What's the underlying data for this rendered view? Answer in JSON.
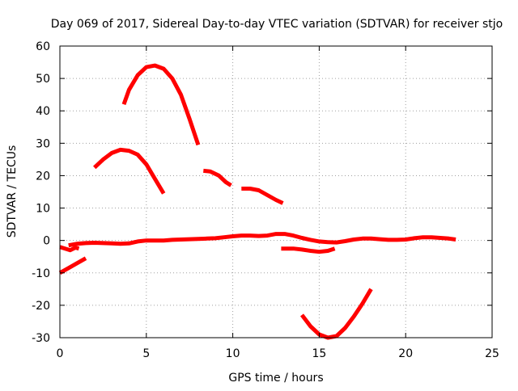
{
  "chart_data": {
    "type": "scatter",
    "title": "Day 069 of 2017, Sidereal Day-to-day VTEC variation (SDTVAR) for receiver stjo",
    "xlabel": "GPS time / hours",
    "ylabel": "SDTVAR / TECUs",
    "xlim": [
      0,
      25
    ],
    "ylim": [
      -30,
      60
    ],
    "xticks": [
      0,
      5,
      10,
      15,
      20,
      25
    ],
    "yticks": [
      -30,
      -20,
      -10,
      0,
      10,
      20,
      30,
      40,
      50,
      60
    ],
    "grid": true,
    "series": [
      {
        "name": "SDTVAR",
        "color": "#ff0000",
        "segments": [
          [
            [
              0.0,
              -2.0
            ],
            [
              0.3,
              -2.5
            ],
            [
              0.6,
              -3.0
            ],
            [
              0.9,
              -2.2
            ],
            [
              1.1,
              -2.5
            ]
          ],
          [
            [
              0.0,
              -10.0
            ],
            [
              0.5,
              -8.5
            ],
            [
              1.0,
              -7.0
            ],
            [
              1.5,
              -5.5
            ]
          ],
          [
            [
              0.5,
              -1.5
            ],
            [
              1.0,
              -1.0
            ],
            [
              1.5,
              -0.8
            ],
            [
              2.0,
              -0.7
            ],
            [
              2.5,
              -0.8
            ],
            [
              3.0,
              -0.9
            ],
            [
              3.5,
              -1.0
            ],
            [
              4.0,
              -0.9
            ],
            [
              4.5,
              -0.3
            ],
            [
              5.0,
              0.0
            ],
            [
              5.5,
              0.0
            ],
            [
              6.0,
              0.0
            ],
            [
              6.5,
              0.2
            ],
            [
              7.0,
              0.3
            ],
            [
              7.5,
              0.4
            ],
            [
              8.0,
              0.5
            ],
            [
              8.5,
              0.6
            ],
            [
              9.0,
              0.7
            ],
            [
              9.5,
              1.0
            ],
            [
              10.0,
              1.3
            ],
            [
              10.5,
              1.5
            ],
            [
              11.0,
              1.5
            ],
            [
              11.5,
              1.4
            ],
            [
              12.0,
              1.5
            ],
            [
              12.5,
              2.0
            ],
            [
              13.0,
              2.0
            ],
            [
              13.5,
              1.5
            ],
            [
              14.0,
              0.8
            ],
            [
              14.5,
              0.2
            ],
            [
              15.0,
              -0.3
            ],
            [
              15.5,
              -0.5
            ],
            [
              16.0,
              -0.6
            ],
            [
              16.5,
              -0.2
            ],
            [
              17.0,
              0.3
            ],
            [
              17.5,
              0.6
            ],
            [
              18.0,
              0.6
            ],
            [
              18.5,
              0.4
            ],
            [
              19.0,
              0.2
            ],
            [
              19.5,
              0.2
            ],
            [
              20.0,
              0.3
            ],
            [
              20.5,
              0.7
            ],
            [
              21.0,
              1.0
            ],
            [
              21.5,
              1.0
            ],
            [
              22.0,
              0.8
            ],
            [
              22.5,
              0.6
            ],
            [
              22.9,
              0.3
            ]
          ],
          [
            [
              3.7,
              42.0
            ],
            [
              4.0,
              46.5
            ],
            [
              4.5,
              51.0
            ],
            [
              5.0,
              53.5
            ],
            [
              5.5,
              54.0
            ],
            [
              6.0,
              53.0
            ],
            [
              6.5,
              50.0
            ],
            [
              7.0,
              45.0
            ],
            [
              7.5,
              37.5
            ],
            [
              8.0,
              29.5
            ]
          ],
          [
            [
              2.0,
              22.5
            ],
            [
              2.5,
              25.0
            ],
            [
              3.0,
              27.0
            ],
            [
              3.5,
              28.0
            ],
            [
              4.0,
              27.7
            ],
            [
              4.5,
              26.5
            ],
            [
              5.0,
              23.5
            ],
            [
              5.5,
              19.0
            ],
            [
              6.0,
              14.5
            ]
          ],
          [
            [
              8.3,
              21.5
            ],
            [
              8.7,
              21.3
            ],
            [
              9.2,
              20.0
            ],
            [
              9.6,
              18.0
            ],
            [
              9.9,
              17.0
            ]
          ],
          [
            [
              10.5,
              16.0
            ],
            [
              11.0,
              16.0
            ],
            [
              11.5,
              15.5
            ],
            [
              12.0,
              14.0
            ],
            [
              12.5,
              12.5
            ],
            [
              12.9,
              11.5
            ]
          ],
          [
            [
              12.8,
              -2.5
            ],
            [
              13.5,
              -2.5
            ],
            [
              14.0,
              -2.8
            ],
            [
              14.5,
              -3.2
            ],
            [
              15.0,
              -3.5
            ],
            [
              15.5,
              -3.2
            ],
            [
              15.9,
              -2.5
            ]
          ],
          [
            [
              14.0,
              -23.0
            ],
            [
              14.5,
              -26.5
            ],
            [
              15.0,
              -29.0
            ],
            [
              15.5,
              -30.0
            ],
            [
              16.0,
              -29.5
            ],
            [
              16.5,
              -27.0
            ],
            [
              17.0,
              -23.5
            ],
            [
              17.5,
              -19.5
            ],
            [
              18.0,
              -15.0
            ]
          ]
        ]
      }
    ]
  }
}
